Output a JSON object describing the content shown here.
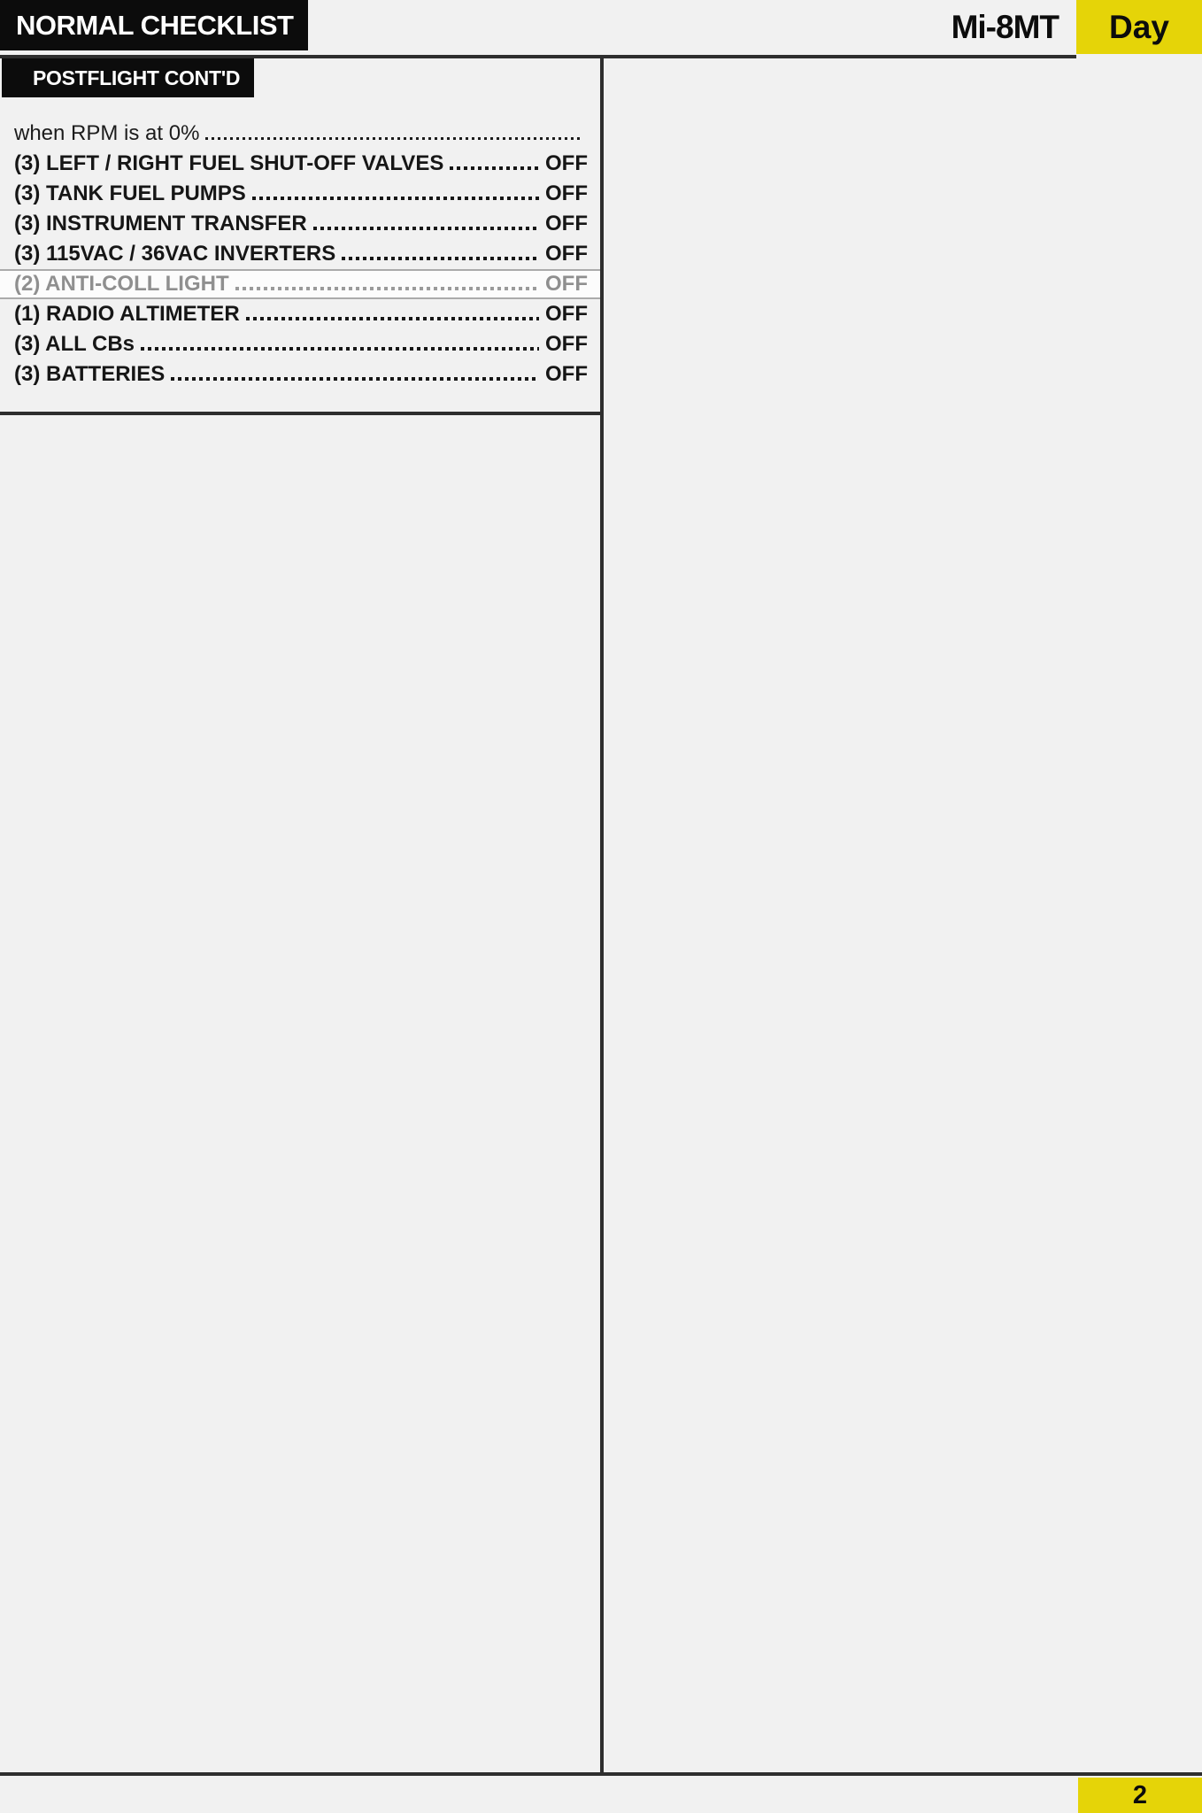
{
  "page": {
    "title": "NORMAL CHECKLIST",
    "aircraft": "Mi-8MT",
    "mode": "Day",
    "section_title": "POSTFLIGHT CONT'D",
    "page_number": "2"
  },
  "colors": {
    "accent_yellow": "#e5d408",
    "ink_black": "#0c0c0c",
    "rule_dark": "#2e2e2e",
    "page_background": "#f1f1f1",
    "highlight_text": "#8f8f8f",
    "highlight_border": "#ababab",
    "highlight_bg": "#fcfcfc"
  },
  "checklist": {
    "items": [
      {
        "label": "when RPM is at 0%",
        "value": "",
        "variant": "note"
      },
      {
        "label": "(3) LEFT / RIGHT FUEL SHUT-OFF VALVES",
        "value": "OFF",
        "variant": "normal"
      },
      {
        "label": "(3) TANK FUEL PUMPS",
        "value": "OFF",
        "variant": "normal"
      },
      {
        "label": "(3) INSTRUMENT TRANSFER",
        "value": "OFF",
        "variant": "normal"
      },
      {
        "label": "(3) 115VAC / 36VAC INVERTERS",
        "value": "OFF",
        "variant": "normal"
      },
      {
        "label": "(2) ANTI-COLL LIGHT",
        "value": "OFF",
        "variant": "highlighted"
      },
      {
        "label": "(1) RADIO ALTIMETER",
        "value": "OFF",
        "variant": "normal"
      },
      {
        "label": "(3) ALL CBs",
        "value": "OFF",
        "variant": "normal"
      },
      {
        "label": "(3) BATTERIES",
        "value": "OFF",
        "variant": "normal"
      }
    ]
  }
}
